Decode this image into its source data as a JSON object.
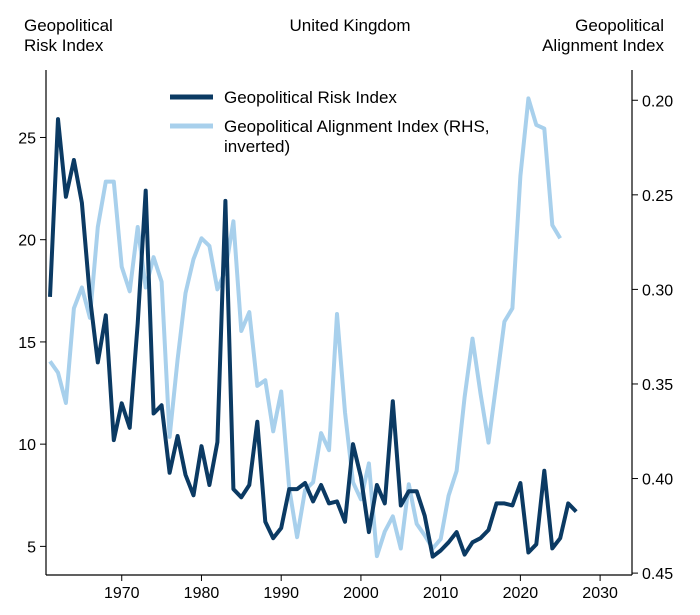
{
  "chart_data": {
    "type": "line",
    "title": "United Kingdom",
    "left_axis_title": [
      "Geopolitical",
      "Risk Index"
    ],
    "right_axis_title": [
      "Geopolitical",
      "Alignment Index"
    ],
    "xlim": [
      1960.5,
      2034
    ],
    "x_ticks": [
      1970,
      1980,
      1990,
      2000,
      2010,
      2020,
      2030
    ],
    "left_ylim": [
      3.6,
      28.3
    ],
    "left_ticks": [
      5,
      10,
      15,
      20,
      25
    ],
    "right_ylim": [
      0.451,
      0.184
    ],
    "right_ticks": [
      0.2,
      0.25,
      0.3,
      0.35,
      0.4,
      0.45
    ],
    "right_inverted": true,
    "legend_position": "top-center",
    "series": [
      {
        "name": "Geopolitical Risk Index",
        "axis": "left",
        "color": "#0b3a63",
        "x": [
          1961,
          1962,
          1963,
          1964,
          1965,
          1966,
          1967,
          1968,
          1969,
          1970,
          1971,
          1972,
          1973,
          1974,
          1975,
          1976,
          1977,
          1978,
          1979,
          1980,
          1981,
          1982,
          1983,
          1984,
          1985,
          1986,
          1987,
          1988,
          1989,
          1990,
          1991,
          1992,
          1993,
          1994,
          1995,
          1996,
          1997,
          1998,
          1999,
          2000,
          2001,
          2002,
          2003,
          2004,
          2005,
          2006,
          2007,
          2008,
          2009,
          2010,
          2011,
          2012,
          2013,
          2014,
          2015,
          2016,
          2017,
          2018,
          2019,
          2020,
          2021,
          2022,
          2023,
          2024,
          2025,
          2026,
          2027
        ],
        "values": [
          17.2,
          25.9,
          22.1,
          23.9,
          21.8,
          17.2,
          14.0,
          16.3,
          10.2,
          12.0,
          10.8,
          15.9,
          22.4,
          11.5,
          11.9,
          8.6,
          10.4,
          8.5,
          7.5,
          9.9,
          8.0,
          10.1,
          21.9,
          7.8,
          7.4,
          8.0,
          11.1,
          6.2,
          5.4,
          5.9,
          7.8,
          7.8,
          8.1,
          7.2,
          8.0,
          7.1,
          7.2,
          6.2,
          10.0,
          8.4,
          5.7,
          8.0,
          7.1,
          12.1,
          7.0,
          7.7,
          7.7,
          6.5,
          4.5,
          4.8,
          5.2,
          5.7,
          4.6,
          5.2,
          5.4,
          5.8,
          7.1,
          7.1,
          7.0,
          8.1,
          4.7,
          5.1,
          8.7,
          4.9,
          5.4,
          7.1,
          6.7
        ]
      },
      {
        "name": "Geopolitical Alignment Index (RHS, inverted)",
        "axis": "right",
        "color": "#a8d0ec",
        "x": [
          1961,
          1962,
          1963,
          1964,
          1965,
          1966,
          1967,
          1968,
          1969,
          1970,
          1971,
          1972,
          1973,
          1974,
          1975,
          1976,
          1977,
          1978,
          1979,
          1980,
          1981,
          1982,
          1983,
          1984,
          1985,
          1986,
          1987,
          1988,
          1989,
          1990,
          1991,
          1992,
          1993,
          1994,
          1995,
          1996,
          1997,
          1998,
          1999,
          2000,
          2001,
          2002,
          2003,
          2004,
          2005,
          2006,
          2007,
          2008,
          2009,
          2010,
          2011,
          2012,
          2013,
          2014,
          2015,
          2016,
          2017,
          2018,
          2019,
          2020,
          2021,
          2022,
          2023,
          2024,
          2025
        ],
        "values": [
          0.338,
          0.344,
          0.36,
          0.31,
          0.299,
          0.315,
          0.267,
          0.243,
          0.243,
          0.288,
          0.301,
          0.267,
          0.299,
          0.283,
          0.296,
          0.378,
          0.337,
          0.302,
          0.284,
          0.273,
          0.277,
          0.3,
          0.29,
          0.264,
          0.322,
          0.312,
          0.351,
          0.348,
          0.375,
          0.354,
          0.405,
          0.431,
          0.406,
          0.402,
          0.376,
          0.385,
          0.313,
          0.365,
          0.402,
          0.411,
          0.392,
          0.441,
          0.428,
          0.42,
          0.437,
          0.403,
          0.424,
          0.43,
          0.437,
          0.432,
          0.409,
          0.396,
          0.357,
          0.326,
          0.355,
          0.381,
          0.349,
          0.317,
          0.31,
          0.24,
          0.199,
          0.213,
          0.215,
          0.266,
          0.273
        ]
      }
    ]
  }
}
